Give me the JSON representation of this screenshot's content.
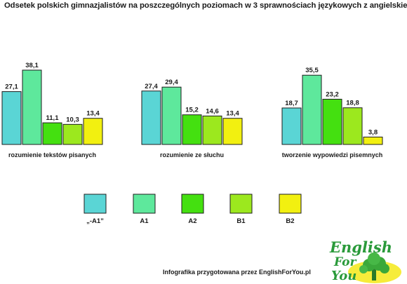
{
  "chart_data": {
    "type": "bar",
    "title": "Odsetek polskich gimnazjalistów na poszczególnych poziomach w 3 sprawnościach językowych z angielskiego",
    "categories": [
      "rozumienie tekstów pisanych",
      "rozumienie ze słuchu",
      "tworzenie wypowiedzi pisemnych"
    ],
    "series": [
      {
        "name": "„-A1”",
        "values": [
          27.1,
          27.4,
          18.7
        ]
      },
      {
        "name": "A1",
        "values": [
          38.1,
          29.4,
          35.5
        ]
      },
      {
        "name": "A2",
        "values": [
          11.1,
          15.2,
          23.2
        ]
      },
      {
        "name": "B1",
        "values": [
          10.3,
          14.6,
          18.8
        ]
      },
      {
        "name": "B2",
        "values": [
          13.4,
          13.4,
          3.8
        ]
      }
    ],
    "value_labels": [
      [
        "27,1",
        "38,1",
        "11,1",
        "10,3",
        "13,4"
      ],
      [
        "27,4",
        "29,4",
        "15,2",
        "14,6",
        "13,4"
      ],
      [
        "18,7",
        "35,5",
        "23,2",
        "18,8",
        "3,8"
      ]
    ],
    "xlabel": "",
    "ylabel": "",
    "ylim": [
      0,
      40
    ],
    "grid": false,
    "legend": "bottom",
    "colors": [
      "#5ad5d5",
      "#5ee89c",
      "#44e010",
      "#9ce81e",
      "#f2f010"
    ]
  },
  "footer": {
    "text": "Infografika przygotowana przez EnglishForYou.pl"
  },
  "logo": {
    "line1": "English",
    "line2": "For",
    "line3": "You"
  }
}
